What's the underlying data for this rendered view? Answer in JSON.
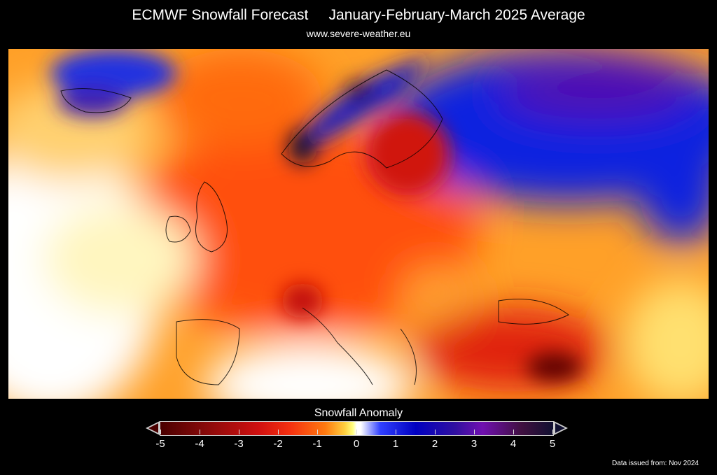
{
  "header": {
    "title": "ECMWF Snowfall Forecast     January-February-March 2025 Average",
    "subtitle": "www.severe-weather.eu"
  },
  "colorbar": {
    "title": "Snowfall Anomaly",
    "ticks": [
      "-5",
      "-4",
      "-3",
      "-2",
      "-1",
      "0",
      "1",
      "2",
      "3",
      "4",
      "5"
    ],
    "range": [
      -5,
      5
    ],
    "colors": {
      "negative_extreme": "#4a0000",
      "negative": "#d01010",
      "near_zero": "#ffffff",
      "positive": "#0000c0",
      "positive_extreme": "#101030"
    }
  },
  "footer": {
    "issued": "Data issued from: Nov 2024"
  }
}
